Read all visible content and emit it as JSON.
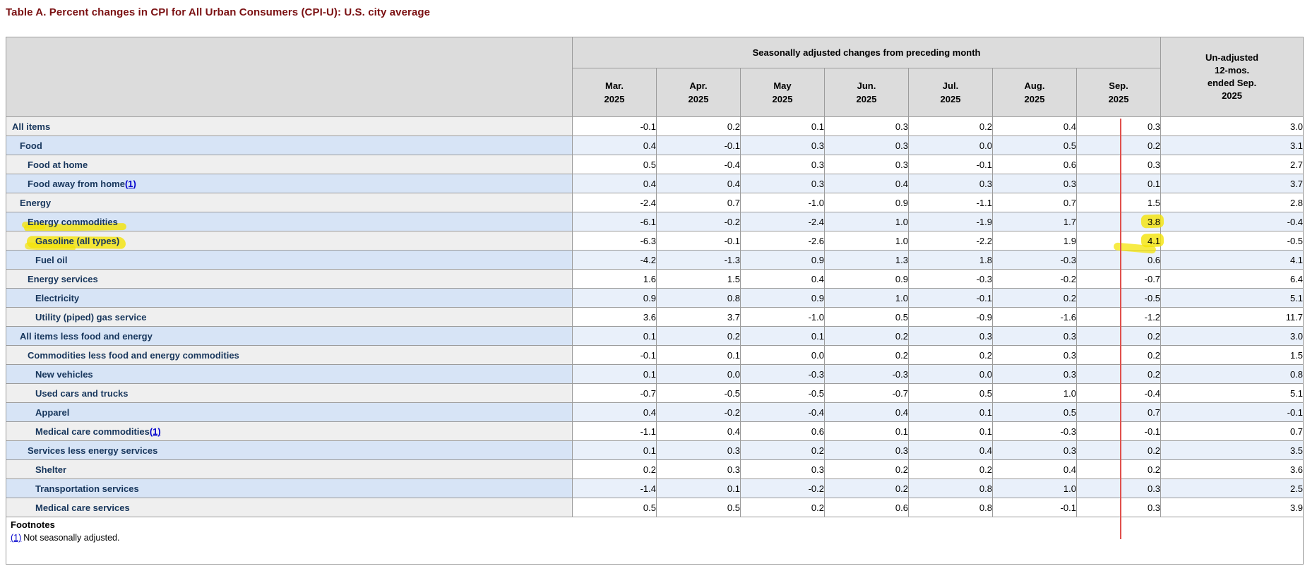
{
  "page": {
    "title": "Table A. Percent changes in CPI for All Urban Consumers (CPI-U): U.S. city average"
  },
  "table": {
    "header": {
      "span_label": "Seasonally adjusted changes from preceding month",
      "unadjusted_label": "Un-adjusted 12-mos. ended Sep. 2025",
      "months": [
        {
          "label": "Mar.",
          "year": "2025"
        },
        {
          "label": "Apr.",
          "year": "2025"
        },
        {
          "label": "May",
          "year": "2025"
        },
        {
          "label": "Jun.",
          "year": "2025"
        },
        {
          "label": "Jul.",
          "year": "2025"
        },
        {
          "label": "Aug.",
          "year": "2025"
        },
        {
          "label": "Sep.",
          "year": "2025"
        }
      ]
    },
    "rows": [
      {
        "label": "All items",
        "indent": 0,
        "footnote_ref": "",
        "label_marker": null,
        "sep_marker": null,
        "values": [
          "-0.1",
          "0.2",
          "0.1",
          "0.3",
          "0.2",
          "0.4",
          "0.3",
          "3.0"
        ]
      },
      {
        "label": "Food",
        "indent": 1,
        "footnote_ref": "",
        "label_marker": null,
        "sep_marker": null,
        "values": [
          "0.4",
          "-0.1",
          "0.3",
          "0.3",
          "0.0",
          "0.5",
          "0.2",
          "3.1"
        ]
      },
      {
        "label": "Food at home",
        "indent": 2,
        "footnote_ref": "",
        "label_marker": null,
        "sep_marker": null,
        "values": [
          "0.5",
          "-0.4",
          "0.3",
          "0.3",
          "-0.1",
          "0.6",
          "0.3",
          "2.7"
        ]
      },
      {
        "label": "Food away from home",
        "indent": 2,
        "footnote_ref": "(1)",
        "label_marker": null,
        "sep_marker": null,
        "values": [
          "0.4",
          "0.4",
          "0.3",
          "0.4",
          "0.3",
          "0.3",
          "0.1",
          "3.7"
        ]
      },
      {
        "label": "Energy",
        "indent": 1,
        "footnote_ref": "",
        "label_marker": null,
        "sep_marker": null,
        "values": [
          "-2.4",
          "0.7",
          "-1.0",
          "0.9",
          "-1.1",
          "0.7",
          "1.5",
          "2.8"
        ]
      },
      {
        "label": "Energy commodities",
        "indent": 2,
        "footnote_ref": "",
        "label_marker": "underline",
        "sep_marker": "blob",
        "values": [
          "-6.1",
          "-0.2",
          "-2.4",
          "1.0",
          "-1.9",
          "1.7",
          "3.8",
          "-0.4"
        ]
      },
      {
        "label": "Gasoline (all types)",
        "indent": 3,
        "footnote_ref": "",
        "label_marker": "cover",
        "sep_marker": "scribble",
        "values": [
          "-6.3",
          "-0.1",
          "-2.6",
          "1.0",
          "-2.2",
          "1.9",
          "4.1",
          "-0.5"
        ]
      },
      {
        "label": "Fuel oil",
        "indent": 3,
        "footnote_ref": "",
        "label_marker": null,
        "sep_marker": null,
        "values": [
          "-4.2",
          "-1.3",
          "0.9",
          "1.3",
          "1.8",
          "-0.3",
          "0.6",
          "4.1"
        ]
      },
      {
        "label": "Energy services",
        "indent": 2,
        "footnote_ref": "",
        "label_marker": null,
        "sep_marker": null,
        "values": [
          "1.6",
          "1.5",
          "0.4",
          "0.9",
          "-0.3",
          "-0.2",
          "-0.7",
          "6.4"
        ]
      },
      {
        "label": "Electricity",
        "indent": 3,
        "footnote_ref": "",
        "label_marker": null,
        "sep_marker": null,
        "values": [
          "0.9",
          "0.8",
          "0.9",
          "1.0",
          "-0.1",
          "0.2",
          "-0.5",
          "5.1"
        ]
      },
      {
        "label": "Utility (piped) gas service",
        "indent": 3,
        "footnote_ref": "",
        "label_marker": null,
        "sep_marker": null,
        "values": [
          "3.6",
          "3.7",
          "-1.0",
          "0.5",
          "-0.9",
          "-1.6",
          "-1.2",
          "11.7"
        ]
      },
      {
        "label": "All items less food and energy",
        "indent": 1,
        "footnote_ref": "",
        "label_marker": null,
        "sep_marker": null,
        "values": [
          "0.1",
          "0.2",
          "0.1",
          "0.2",
          "0.3",
          "0.3",
          "0.2",
          "3.0"
        ]
      },
      {
        "label": "Commodities less food and energy commodities",
        "indent": 2,
        "footnote_ref": "",
        "label_marker": null,
        "sep_marker": null,
        "values": [
          "-0.1",
          "0.1",
          "0.0",
          "0.2",
          "0.2",
          "0.3",
          "0.2",
          "1.5"
        ]
      },
      {
        "label": "New vehicles",
        "indent": 3,
        "footnote_ref": "",
        "label_marker": null,
        "sep_marker": null,
        "values": [
          "0.1",
          "0.0",
          "-0.3",
          "-0.3",
          "0.0",
          "0.3",
          "0.2",
          "0.8"
        ]
      },
      {
        "label": "Used cars and trucks",
        "indent": 3,
        "footnote_ref": "",
        "label_marker": null,
        "sep_marker": null,
        "values": [
          "-0.7",
          "-0.5",
          "-0.5",
          "-0.7",
          "0.5",
          "1.0",
          "-0.4",
          "5.1"
        ]
      },
      {
        "label": "Apparel",
        "indent": 3,
        "footnote_ref": "",
        "label_marker": null,
        "sep_marker": null,
        "values": [
          "0.4",
          "-0.2",
          "-0.4",
          "0.4",
          "0.1",
          "0.5",
          "0.7",
          "-0.1"
        ]
      },
      {
        "label": "Medical care commodities",
        "indent": 3,
        "footnote_ref": "(1)",
        "label_marker": null,
        "sep_marker": null,
        "values": [
          "-1.1",
          "0.4",
          "0.6",
          "0.1",
          "0.1",
          "-0.3",
          "-0.1",
          "0.7"
        ]
      },
      {
        "label": "Services less energy services",
        "indent": 2,
        "footnote_ref": "",
        "label_marker": null,
        "sep_marker": null,
        "values": [
          "0.1",
          "0.3",
          "0.2",
          "0.3",
          "0.4",
          "0.3",
          "0.2",
          "3.5"
        ]
      },
      {
        "label": "Shelter",
        "indent": 3,
        "footnote_ref": "",
        "label_marker": null,
        "sep_marker": null,
        "values": [
          "0.2",
          "0.3",
          "0.3",
          "0.2",
          "0.2",
          "0.4",
          "0.2",
          "3.6"
        ]
      },
      {
        "label": "Transportation services",
        "indent": 3,
        "footnote_ref": "",
        "label_marker": null,
        "sep_marker": null,
        "values": [
          "-1.4",
          "0.1",
          "-0.2",
          "0.2",
          "0.8",
          "1.0",
          "0.3",
          "2.5"
        ]
      },
      {
        "label": "Medical care services",
        "indent": 3,
        "footnote_ref": "",
        "label_marker": null,
        "sep_marker": null,
        "values": [
          "0.5",
          "0.5",
          "0.2",
          "0.6",
          "0.8",
          "-0.1",
          "0.3",
          "3.9"
        ]
      }
    ]
  },
  "footnotes": {
    "heading": "Footnotes",
    "items": [
      {
        "ref": "(1)",
        "text": "Not seasonally adjusted."
      }
    ]
  },
  "annotations": {
    "highlighter_color": "#f4e408",
    "red_line_color": "#e0504c",
    "red_line_column": "Sep. 2025",
    "highlighted_labels": [
      "Energy commodities",
      "Gasoline (all types)"
    ],
    "highlighted_values": [
      "3.8",
      "4.1"
    ]
  },
  "colors": {
    "title": "#7b1113",
    "header_bg": "#dcdcdc",
    "row_gray_label": "#efefef",
    "row_blue_label": "#d7e4f6",
    "row_white_data": "#ffffff",
    "row_blue_data": "#e9f0fa",
    "border": "#9c9c9c",
    "label_text": "#17365c",
    "link": "#0000cc"
  }
}
